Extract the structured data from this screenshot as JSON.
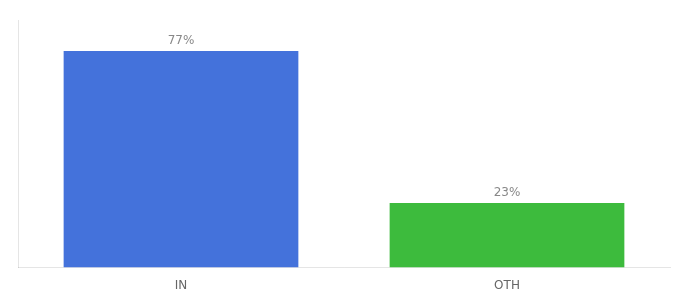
{
  "chart_data": {
    "type": "bar",
    "categories": [
      "IN",
      "OTH"
    ],
    "values": [
      77,
      23
    ],
    "value_labels": [
      "77%",
      "23%"
    ],
    "colors": [
      "#4472db",
      "#3dbb3d"
    ],
    "ylim": [
      0,
      88
    ],
    "data_labels": true,
    "tick_labels": "x",
    "grid": false
  }
}
